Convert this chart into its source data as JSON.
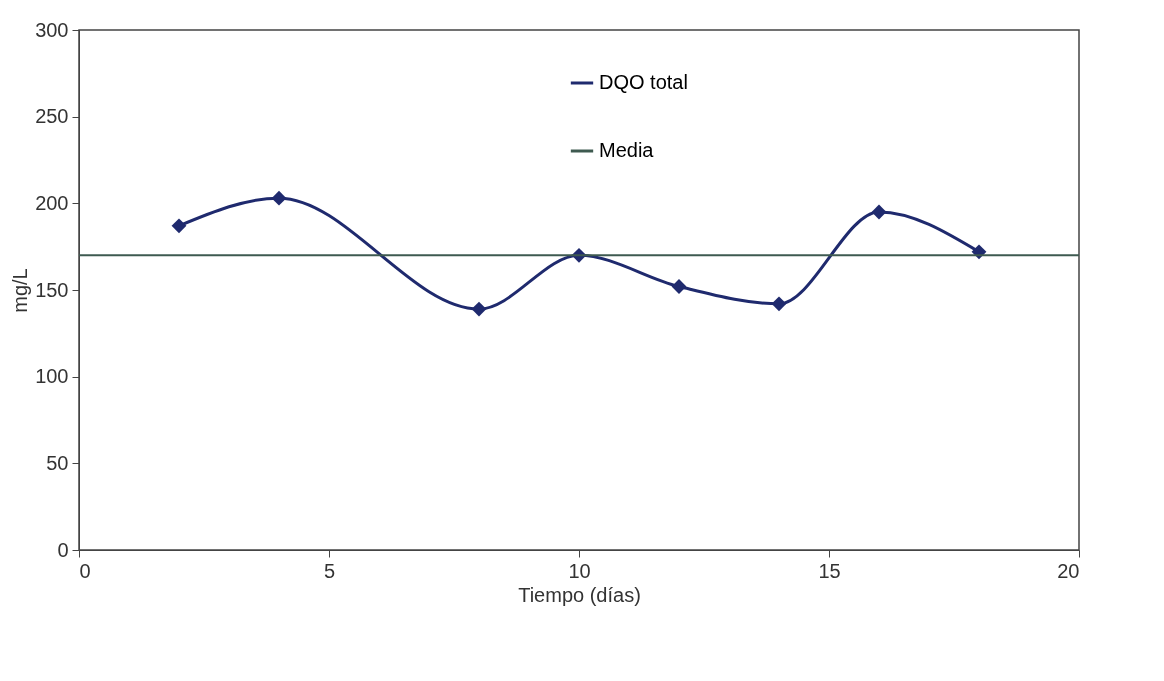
{
  "chart_data": {
    "type": "line",
    "xlabel": "Tiempo (días)",
    "ylabel": "mg/L",
    "x": [
      2,
      4,
      8,
      10,
      12,
      14,
      16,
      18
    ],
    "series": [
      {
        "name": "DQO total",
        "color": "#1f2a6e",
        "values": [
          187,
          203,
          139,
          170,
          152,
          142,
          195,
          172
        ]
      }
    ],
    "ref_lines": [
      {
        "axis": "y",
        "value": 170,
        "label": "Media",
        "color": "#3e5a50"
      }
    ],
    "xlim": [
      0,
      20
    ],
    "xticks": [
      0,
      5,
      10,
      15,
      20
    ],
    "ylim": [
      0,
      300
    ],
    "yticks": [
      0,
      50,
      100,
      150,
      200,
      250,
      300
    ],
    "marker": "diamond",
    "legend": "top right",
    "grid": false
  }
}
